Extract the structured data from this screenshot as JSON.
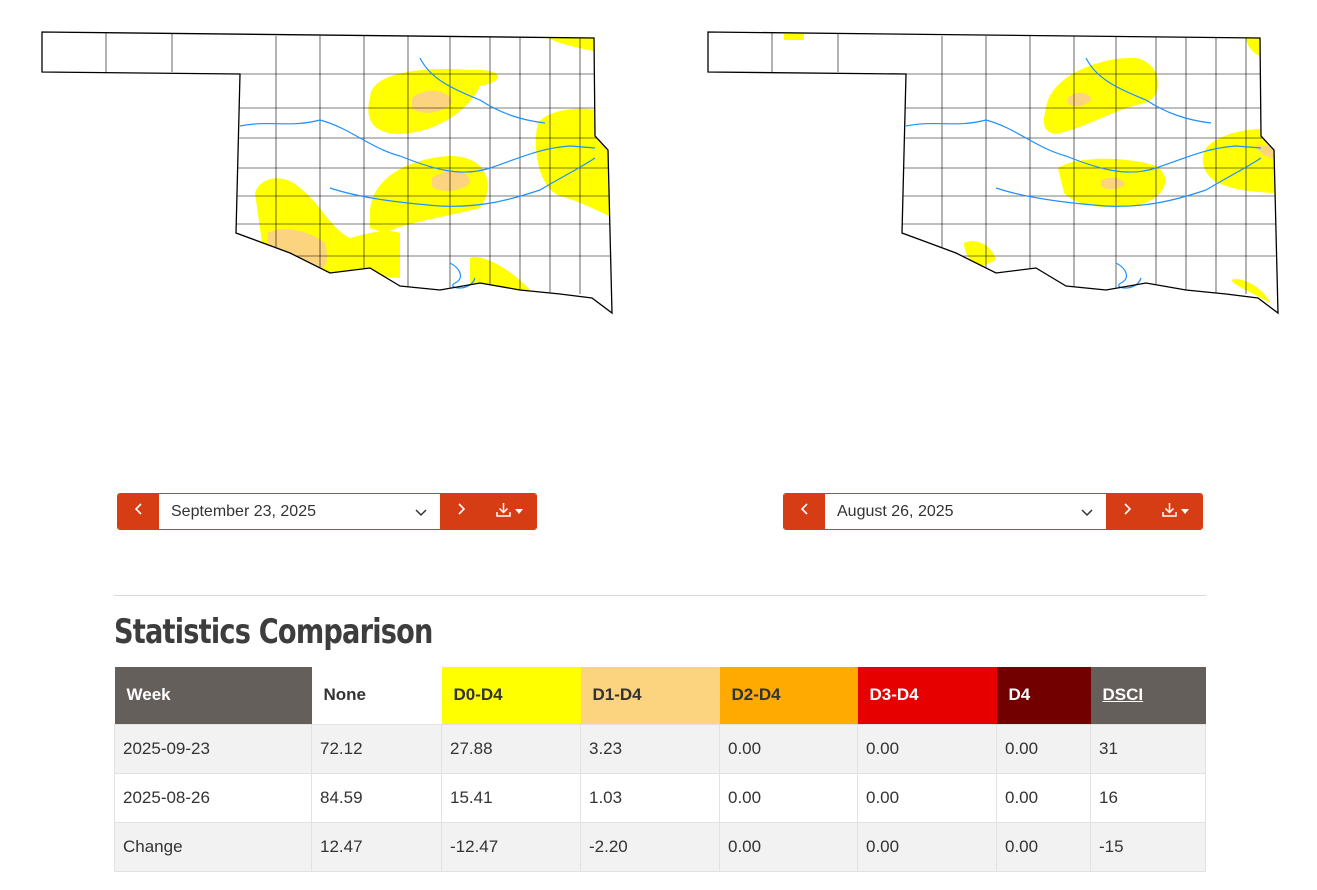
{
  "maps": {
    "left": {
      "date": "September 23, 2025"
    },
    "right": {
      "date": "August 26, 2025"
    }
  },
  "icons": {
    "prev": "chevron-left-icon",
    "next": "chevron-right-icon",
    "dropdown": "chevron-down-icon",
    "download": "download-icon"
  },
  "colors": {
    "accent": "#d63d14",
    "D0": "#ffff00",
    "D1": "#fcd37f",
    "D2": "#ffaa00",
    "D3": "#e60000",
    "D4": "#730000",
    "header_gray": "#655f5c",
    "river": "#1e90ff"
  },
  "stats": {
    "title": "Statistics Comparison",
    "headers": [
      "Week",
      "None",
      "D0-D4",
      "D1-D4",
      "D2-D4",
      "D3-D4",
      "D4",
      "DSCI"
    ],
    "rows": [
      [
        "2025-09-23",
        "72.12",
        "27.88",
        "3.23",
        "0.00",
        "0.00",
        "0.00",
        "31"
      ],
      [
        "2025-08-26",
        "84.59",
        "15.41",
        "1.03",
        "0.00",
        "0.00",
        "0.00",
        "16"
      ],
      [
        "Change",
        "12.47",
        "-12.47",
        "-2.20",
        "0.00",
        "0.00",
        "0.00",
        "-15"
      ]
    ]
  }
}
